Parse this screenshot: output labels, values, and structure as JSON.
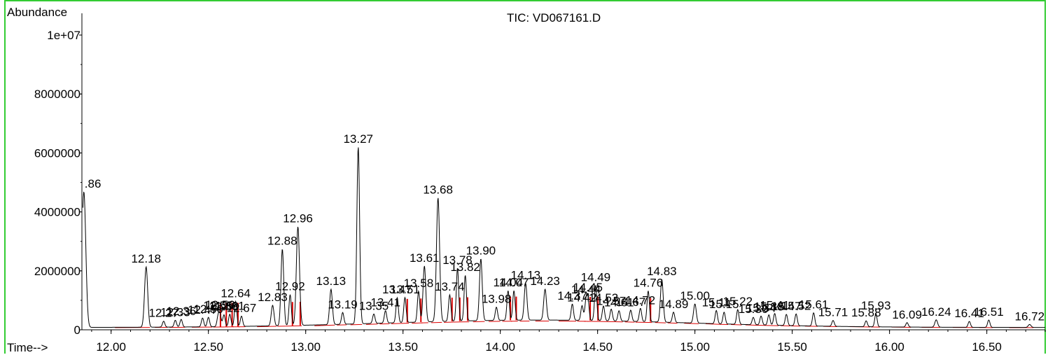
{
  "chart_data": {
    "type": "line",
    "title": "TIC: VD067161.D",
    "ylabel": "Abundance",
    "xlabel": "Time-->",
    "xlim": [
      11.85,
      16.8
    ],
    "ylim": [
      0,
      10500000
    ],
    "xticks": [
      "12.00",
      "12.50",
      "13.00",
      "13.50",
      "14.00",
      "14.50",
      "15.00",
      "15.50",
      "16.00",
      "16.50"
    ],
    "yticks": [
      {
        "value": 0,
        "label": "0"
      },
      {
        "value": 2000000,
        "label": "2000000"
      },
      {
        "value": 4000000,
        "label": "4000000"
      },
      {
        "value": 6000000,
        "label": "6000000"
      },
      {
        "value": 8000000,
        "label": "8000000"
      },
      {
        "value": 10000000,
        "label": "1e+07"
      }
    ],
    "peaks": [
      {
        "rt": 11.86,
        "height": 4600000,
        "label": ".86",
        "width": 0.01
      },
      {
        "rt": 12.18,
        "height": 2050000,
        "label": "12.18",
        "width": 0.008
      },
      {
        "rt": 12.27,
        "height": 200000,
        "label": "12.27",
        "width": 0.006
      },
      {
        "rt": 12.33,
        "height": 230000,
        "label": "12.33",
        "width": 0.006
      },
      {
        "rt": 12.36,
        "height": 260000,
        "label": "12.36",
        "width": 0.006
      },
      {
        "rt": 12.47,
        "height": 300000,
        "label": "12.47",
        "width": 0.006
      },
      {
        "rt": 12.5,
        "height": 320000,
        "label": "12.50",
        "width": 0.006
      },
      {
        "rt": 12.55,
        "height": 340000,
        "label": "12.55",
        "width": 0.006
      },
      {
        "rt": 12.56,
        "height": 380000,
        "label": "12.56",
        "width": 0.006
      },
      {
        "rt": 12.58,
        "height": 400000,
        "label": "12.58",
        "width": 0.006
      },
      {
        "rt": 12.61,
        "height": 420000,
        "label": "12.61",
        "width": 0.006
      },
      {
        "rt": 12.64,
        "height": 850000,
        "label": "12.64",
        "width": 0.006
      },
      {
        "rt": 12.67,
        "height": 350000,
        "label": "12.67",
        "width": 0.006
      },
      {
        "rt": 12.83,
        "height": 700000,
        "label": "12.83",
        "width": 0.007
      },
      {
        "rt": 12.88,
        "height": 2600000,
        "label": "12.88",
        "width": 0.007
      },
      {
        "rt": 12.92,
        "height": 1050000,
        "label": "12.92",
        "width": 0.006
      },
      {
        "rt": 12.96,
        "height": 3350000,
        "label": "12.96",
        "width": 0.008
      },
      {
        "rt": 13.13,
        "height": 1200000,
        "label": "13.13",
        "width": 0.007
      },
      {
        "rt": 13.19,
        "height": 400000,
        "label": "13.19",
        "width": 0.006
      },
      {
        "rt": 13.27,
        "height": 6000000,
        "label": "13.27",
        "width": 0.007
      },
      {
        "rt": 13.35,
        "height": 320000,
        "label": "13.35",
        "width": 0.006
      },
      {
        "rt": 13.41,
        "height": 420000,
        "label": "13.41",
        "width": 0.006
      },
      {
        "rt": 13.47,
        "height": 850000,
        "label": "13.47",
        "width": 0.006
      },
      {
        "rt": 13.51,
        "height": 850000,
        "label": "13.51",
        "width": 0.006
      },
      {
        "rt": 13.58,
        "height": 1050000,
        "label": "13.58",
        "width": 0.006
      },
      {
        "rt": 13.61,
        "height": 1900000,
        "label": "13.61",
        "width": 0.007
      },
      {
        "rt": 13.68,
        "height": 4200000,
        "label": "13.68",
        "width": 0.008
      },
      {
        "rt": 13.74,
        "height": 900000,
        "label": "13.74",
        "width": 0.006
      },
      {
        "rt": 13.78,
        "height": 1800000,
        "label": "13.78",
        "width": 0.006
      },
      {
        "rt": 13.82,
        "height": 1550000,
        "label": "13.82",
        "width": 0.006
      },
      {
        "rt": 13.9,
        "height": 2100000,
        "label": "13.90",
        "width": 0.007
      },
      {
        "rt": 13.98,
        "height": 450000,
        "label": "13.98",
        "width": 0.006
      },
      {
        "rt": 14.04,
        "height": 1000000,
        "label": "14.04",
        "width": 0.006
      },
      {
        "rt": 14.07,
        "height": 1000000,
        "label": "14.07",
        "width": 0.006
      },
      {
        "rt": 14.13,
        "height": 1250000,
        "label": "14.13",
        "width": 0.007
      },
      {
        "rt": 14.23,
        "height": 1050000,
        "label": "14.23",
        "width": 0.007
      },
      {
        "rt": 14.37,
        "height": 550000,
        "label": "14.37",
        "width": 0.006
      },
      {
        "rt": 14.42,
        "height": 500000,
        "label": "14.42",
        "width": 0.006
      },
      {
        "rt": 14.44,
        "height": 600000,
        "label": "14.44",
        "width": 0.006
      },
      {
        "rt": 14.45,
        "height": 700000,
        "label": "14.45",
        "width": 0.006
      },
      {
        "rt": 14.49,
        "height": 1200000,
        "label": "14.49",
        "width": 0.006
      },
      {
        "rt": 14.53,
        "height": 500000,
        "label": "14.53",
        "width": 0.006
      },
      {
        "rt": 14.57,
        "height": 400000,
        "label": "14.57",
        "width": 0.006
      },
      {
        "rt": 14.61,
        "height": 350000,
        "label": "14.61",
        "width": 0.006
      },
      {
        "rt": 14.67,
        "height": 380000,
        "label": "14.67",
        "width": 0.006
      },
      {
        "rt": 14.72,
        "height": 450000,
        "label": "14.72",
        "width": 0.006
      },
      {
        "rt": 14.76,
        "height": 1050000,
        "label": "14.76",
        "width": 0.006
      },
      {
        "rt": 14.83,
        "height": 1450000,
        "label": "14.83",
        "width": 0.007
      },
      {
        "rt": 14.89,
        "height": 350000,
        "label": "14.89",
        "width": 0.006
      },
      {
        "rt": 15.0,
        "height": 650000,
        "label": "15.00",
        "width": 0.007
      },
      {
        "rt": 15.11,
        "height": 450000,
        "label": "15.11",
        "width": 0.006
      },
      {
        "rt": 15.15,
        "height": 400000,
        "label": "15.15",
        "width": 0.006
      },
      {
        "rt": 15.22,
        "height": 500000,
        "label": "15.22",
        "width": 0.006
      },
      {
        "rt": 15.3,
        "height": 250000,
        "label": "15.30",
        "width": 0.006
      },
      {
        "rt": 15.34,
        "height": 300000,
        "label": "15.34",
        "width": 0.006
      },
      {
        "rt": 15.38,
        "height": 350000,
        "label": "15.38",
        "width": 0.006
      },
      {
        "rt": 15.41,
        "height": 400000,
        "label": "15.41",
        "width": 0.006
      },
      {
        "rt": 15.47,
        "height": 380000,
        "label": "15.47",
        "width": 0.006
      },
      {
        "rt": 15.52,
        "height": 400000,
        "label": "15.52",
        "width": 0.006
      },
      {
        "rt": 15.61,
        "height": 450000,
        "label": "15.61",
        "width": 0.006
      },
      {
        "rt": 15.71,
        "height": 200000,
        "label": "15.71",
        "width": 0.006
      },
      {
        "rt": 15.88,
        "height": 200000,
        "label": "15.88",
        "width": 0.006
      },
      {
        "rt": 15.93,
        "height": 450000,
        "label": "15.93",
        "width": 0.006
      },
      {
        "rt": 16.09,
        "height": 150000,
        "label": "16.09",
        "width": 0.006
      },
      {
        "rt": 16.24,
        "height": 250000,
        "label": "16.24",
        "width": 0.007
      },
      {
        "rt": 16.41,
        "height": 200000,
        "label": "16.41",
        "width": 0.006
      },
      {
        "rt": 16.51,
        "height": 250000,
        "label": "16.51",
        "width": 0.006
      },
      {
        "rt": 16.72,
        "height": 100000,
        "label": "16.72",
        "width": 0.007
      }
    ],
    "integration_marks": [
      12.55,
      12.58,
      12.61,
      12.64,
      12.92,
      12.96,
      13.51,
      13.58,
      13.74,
      13.78,
      13.82,
      14.04,
      14.07,
      14.45,
      14.49,
      14.76
    ]
  },
  "colors": {
    "trace": "#000000",
    "baseline": "#dd0000",
    "frame": "#33cc33"
  }
}
